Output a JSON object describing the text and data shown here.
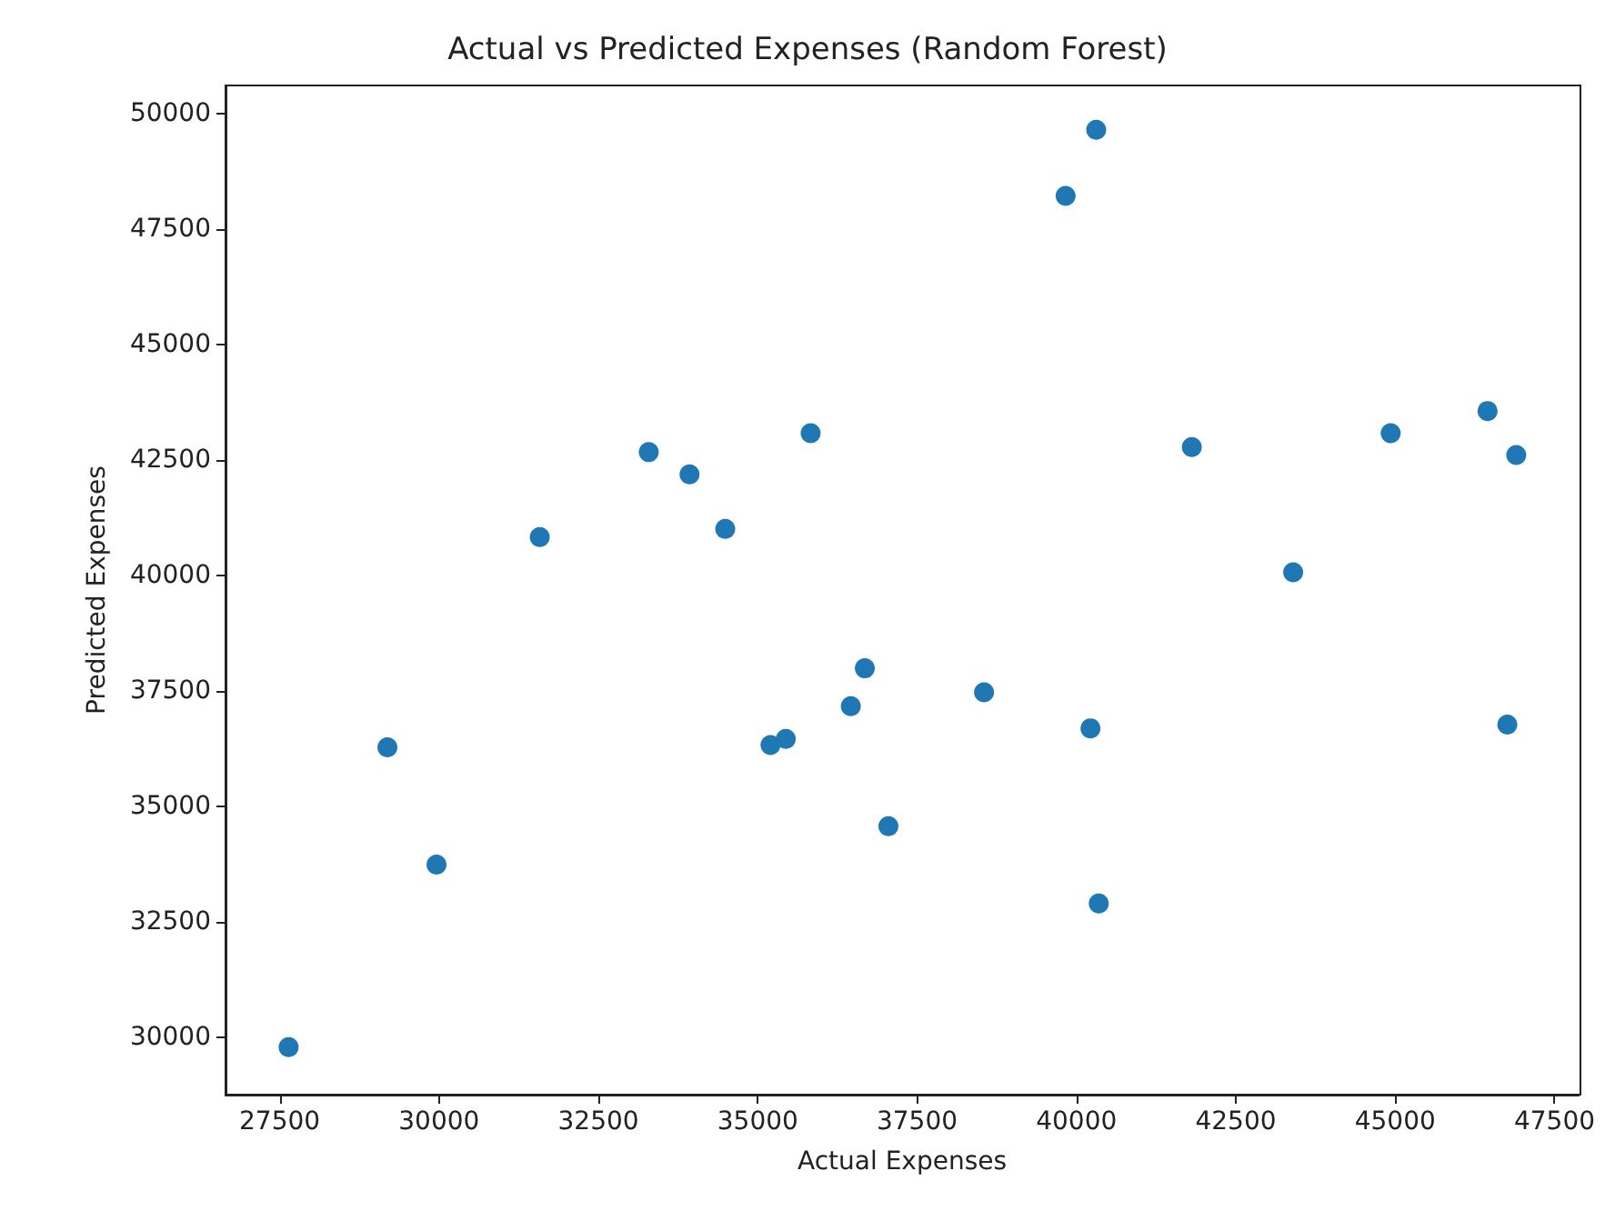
{
  "chart_data": {
    "type": "scatter",
    "title": "Actual vs Predicted Expenses (Random Forest)",
    "xlabel": "Actual Expenses",
    "ylabel": "Predicted Expenses",
    "series": [
      {
        "color": "#1f77b4",
        "x": [
          31580,
          33290,
          33930,
          34490,
          35830,
          40310,
          39830,
          41810,
          43400,
          44930,
          46450,
          46900,
          27640,
          29190,
          29960,
          35200,
          35440,
          36460,
          36680,
          37050,
          38550,
          40220,
          40350,
          46760
        ],
        "values": [
          40830,
          42670,
          42190,
          41010,
          43080,
          49650,
          48220,
          42780,
          40070,
          43080,
          43560,
          42610,
          29790,
          36280,
          33740,
          36330,
          36460,
          37170,
          37990,
          34570,
          37470,
          36690,
          32900,
          36770
        ]
      }
    ],
    "xlim": [
      26650,
      47880
    ],
    "ylim": [
      28760,
      50610
    ],
    "xticks": [
      27500,
      30000,
      32500,
      35000,
      37500,
      40000,
      42500,
      45000,
      47500
    ],
    "yticks": [
      30000,
      32500,
      35000,
      37500,
      40000,
      42500,
      45000,
      47500,
      50000
    ],
    "grid": false,
    "marker": "circle"
  }
}
